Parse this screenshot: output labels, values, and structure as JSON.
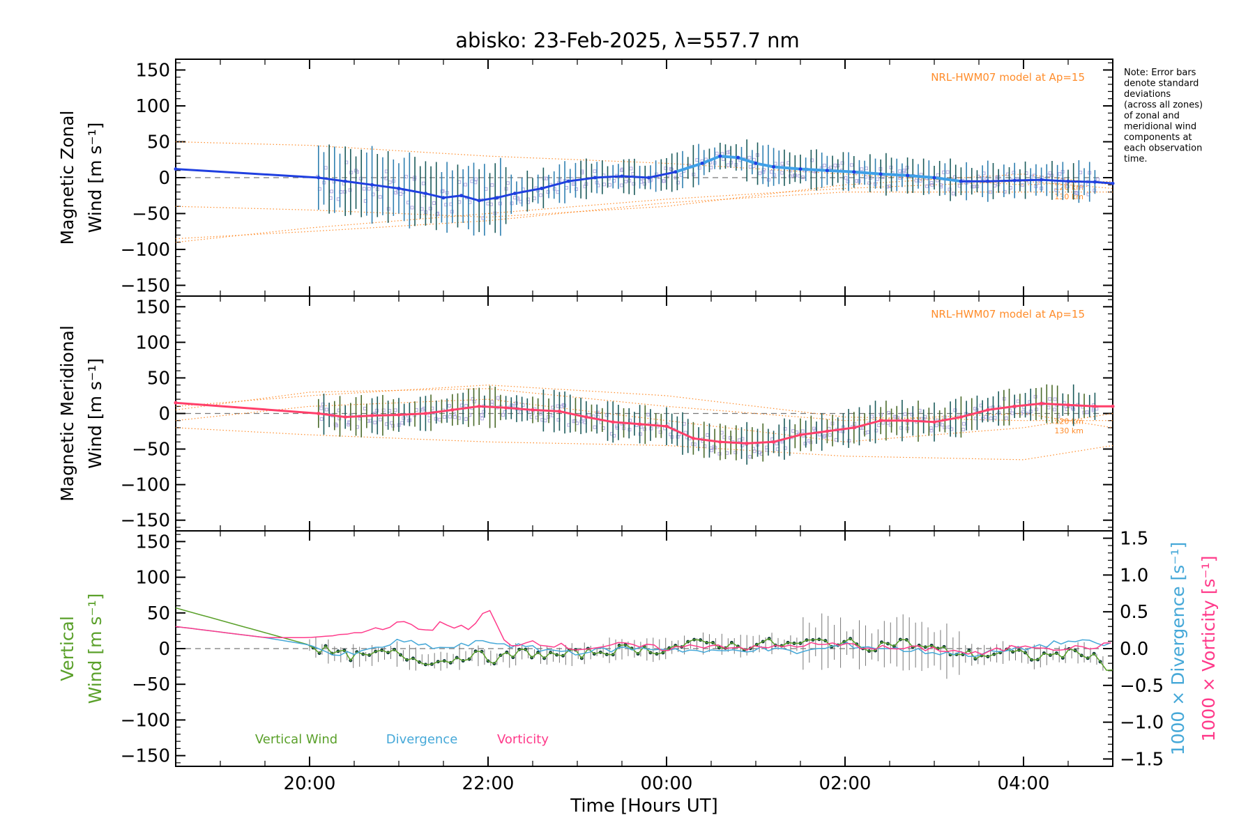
{
  "title": "abisko: 23-Feb-2025, λ=557.7 nm",
  "note_lines": [
    "Note: Error bars",
    "denote standard",
    "deviations",
    "(across all zones)",
    "of zonal and",
    "meridional wind",
    "components at",
    "each observation",
    "time."
  ],
  "colors": {
    "zonal": "#1f3fe0",
    "zonal_light": "#3fa0e8",
    "meridional": "#ff3f6a",
    "model": "#ff8c2a",
    "scatter": "#b0a8e0",
    "vertical": "#5aa02a",
    "divergence": "#45a8d8",
    "vorticity": "#ff3a8a",
    "vert_points": "#0e3a3a",
    "errbar": "#222222"
  },
  "chart_data": [
    {
      "type": "line",
      "panel": "zonal",
      "ylabel_lines": [
        "Magnetic Zonal",
        "Wind [m s⁻¹]"
      ],
      "model_label": "NRL-HWM07 model at Ap=15",
      "model_alt_labels": [
        "120 km",
        "130 km"
      ],
      "xlim_hours": [
        18.5,
        29.0
      ],
      "ylim": [
        -165,
        165
      ],
      "y_ticks": [
        150,
        100,
        50,
        0,
        -50,
        -100,
        -150
      ],
      "series": [
        {
          "x": [
            18.5,
            20.1,
            20.4,
            20.7,
            21.0,
            21.3,
            21.5,
            21.7,
            21.9,
            22.1,
            22.3,
            22.6,
            22.9,
            23.2,
            23.5,
            23.8,
            24.1,
            24.4,
            24.6,
            24.8,
            25.0,
            25.2,
            25.5,
            25.8,
            26.1,
            26.4,
            26.7,
            27.0,
            27.3,
            27.6,
            27.9,
            28.2,
            28.5,
            28.8,
            29.0
          ],
          "values": [
            12,
            0,
            -5,
            -10,
            -15,
            -22,
            -28,
            -25,
            -32,
            -28,
            -22,
            -15,
            -5,
            0,
            2,
            0,
            8,
            20,
            30,
            28,
            20,
            15,
            12,
            10,
            8,
            5,
            3,
            0,
            -5,
            -5,
            -4,
            -3,
            -5,
            -6,
            -8
          ]
        }
      ]
    },
    {
      "type": "line",
      "panel": "meridional",
      "ylabel_lines": [
        "Magnetic Meridional",
        "Wind [m s⁻¹]"
      ],
      "model_label": "NRL-HWM07 model at Ap=15",
      "model_alt_labels": [
        "120 km",
        "130 km"
      ],
      "xlim_hours": [
        18.5,
        29.0
      ],
      "ylim": [
        -165,
        165
      ],
      "y_ticks": [
        150,
        100,
        50,
        0,
        -50,
        -100,
        -150
      ],
      "series": [
        {
          "x": [
            18.5,
            20.1,
            20.4,
            20.7,
            21.0,
            21.3,
            21.6,
            21.9,
            22.2,
            22.5,
            22.8,
            23.1,
            23.4,
            23.7,
            24.0,
            24.3,
            24.6,
            24.9,
            25.2,
            25.5,
            25.8,
            26.1,
            26.4,
            26.7,
            27.0,
            27.3,
            27.6,
            27.9,
            28.2,
            28.5,
            28.8,
            29.0
          ],
          "values": [
            15,
            0,
            -5,
            -3,
            -2,
            0,
            5,
            10,
            8,
            5,
            3,
            -5,
            -12,
            -15,
            -18,
            -35,
            -40,
            -42,
            -40,
            -30,
            -25,
            -20,
            -10,
            -10,
            -12,
            -5,
            5,
            10,
            14,
            12,
            10,
            10
          ]
        }
      ]
    },
    {
      "type": "line",
      "panel": "vertical",
      "ylabel_lines": [
        "Vertical",
        "Wind [m s⁻¹]"
      ],
      "y2label_lines": [
        "1000 × Divergence [s⁻¹]",
        "1000 × Vorticity [s⁻¹]"
      ],
      "xlabel": "Time [Hours UT]",
      "x_tick_labels": [
        "20:00",
        "22:00",
        "00:00",
        "02:00",
        "04:00"
      ],
      "x_tick_hours": [
        20,
        22,
        24,
        26,
        28
      ],
      "xlim_hours": [
        18.5,
        29.0
      ],
      "ylim": [
        -165,
        165
      ],
      "y_ticks": [
        150,
        100,
        50,
        0,
        -50,
        -100,
        -150
      ],
      "y2lim": [
        -1.6,
        1.6
      ],
      "y2_ticks": [
        "1.5",
        "1.0",
        "0.5",
        "0.0",
        "−0.5",
        "−1.0",
        "−1.5"
      ],
      "legend": [
        "Vertical Wind",
        "Divergence",
        "Vorticity"
      ],
      "series": [
        {
          "name": "Vertical Wind",
          "x": [
            18.5,
            20.0,
            20.3,
            20.6,
            20.9,
            21.2,
            21.5,
            21.8,
            22.1,
            22.4,
            22.7,
            23.0,
            23.3,
            23.6,
            23.9,
            24.2,
            24.5,
            24.8,
            25.1,
            25.4,
            25.7,
            26.0,
            26.3,
            26.6,
            26.9,
            27.2,
            27.5,
            27.8,
            28.1,
            28.4,
            28.7,
            29.0
          ],
          "values": [
            57,
            5,
            -8,
            -12,
            -5,
            -15,
            -18,
            -8,
            -15,
            -5,
            -10,
            -8,
            -3,
            0,
            -2,
            5,
            8,
            3,
            8,
            5,
            10,
            8,
            3,
            10,
            2,
            -5,
            -10,
            -5,
            -12,
            -8,
            -5,
            -30
          ]
        },
        {
          "name": "Divergence",
          "x": [
            18.5,
            19.5,
            20.0,
            20.3,
            20.6,
            21.0,
            21.5,
            22.0,
            22.5,
            23.0,
            23.5,
            24.0,
            24.5,
            25.0,
            25.5,
            26.0,
            26.5,
            27.0,
            27.5,
            28.0,
            28.5,
            29.0
          ],
          "values": [
            0.3,
            0.15,
            0.05,
            -0.1,
            -0.05,
            0.1,
            0.0,
            0.1,
            0.0,
            -0.05,
            0.0,
            0.0,
            -0.05,
            0.0,
            -0.05,
            0.05,
            0.0,
            -0.05,
            -0.08,
            0.0,
            0.1,
            0.05
          ]
        },
        {
          "name": "Vorticity",
          "x": [
            18.5,
            19.5,
            20.0,
            20.5,
            21.0,
            21.3,
            21.5,
            21.8,
            22.0,
            22.2,
            22.5,
            23.0,
            23.5,
            24.0,
            24.5,
            25.0,
            25.5,
            26.0,
            26.5,
            27.0,
            27.5,
            28.0,
            28.5,
            29.0
          ],
          "values": [
            0.3,
            0.15,
            0.15,
            0.2,
            0.35,
            0.25,
            0.35,
            0.25,
            0.55,
            0.05,
            0.1,
            0.0,
            0.05,
            0.0,
            0.05,
            0.0,
            0.05,
            0.05,
            0.0,
            0.0,
            -0.08,
            0.05,
            0.0,
            0.05
          ]
        }
      ]
    }
  ]
}
